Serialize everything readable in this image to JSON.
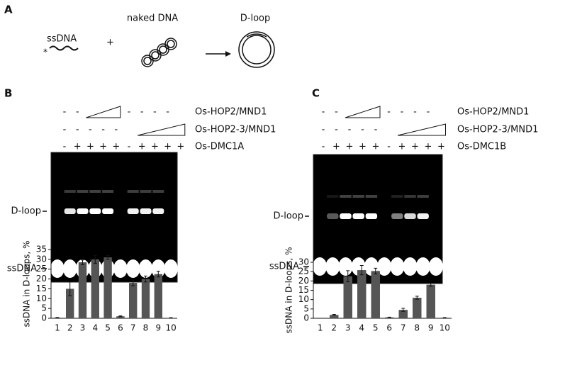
{
  "panel_a": {
    "label": "A",
    "ssdna": "ssDNA",
    "star": "*",
    "plus": "+",
    "naked_dna": "naked DNA",
    "d_loop": "D-loop"
  },
  "gels": [
    {
      "label": "B",
      "dloop_label": "D-loop",
      "ssdna_label": "ssDNA",
      "rows": [
        {
          "label": "Os-HOP2/MND1",
          "signs": [
            "-",
            "-",
            "-",
            "-",
            "-",
            "-"
          ]
        },
        {
          "label": "Os-HOP2-3/MND1",
          "signs": [
            "-",
            "-",
            "-",
            "-",
            "-"
          ]
        },
        {
          "label": "Os-DMC1A",
          "signs": [
            "-",
            "+",
            "+",
            "+",
            "+",
            "-",
            "+",
            "+",
            "+",
            "+"
          ]
        }
      ]
    },
    {
      "label": "C",
      "dloop_label": "D-loop",
      "ssdna_label": "ssDNA",
      "rows": [
        {
          "label": "Os-HOP2/MND1",
          "signs": [
            "-",
            "-",
            "-",
            "-",
            "-",
            "-"
          ]
        },
        {
          "label": "Os-HOP2-3/MND1",
          "signs": [
            "-",
            "-",
            "-",
            "-",
            "-"
          ]
        },
        {
          "label": "Os-DMC1B",
          "signs": [
            "-",
            "+",
            "+",
            "+",
            "+",
            "-",
            "+",
            "+",
            "+",
            "+"
          ]
        }
      ]
    }
  ],
  "chart_data": [
    {
      "type": "bar",
      "y_label": "ssDNA in D-loops, %",
      "categories": [
        "1",
        "2",
        "3",
        "4",
        "5",
        "6",
        "7",
        "8",
        "9",
        "10"
      ],
      "values": [
        0.3,
        15,
        28.5,
        30,
        31,
        1,
        18,
        20,
        22.5,
        0.2
      ],
      "errors": [
        0.1,
        3.5,
        1.2,
        2,
        1,
        0.2,
        1.5,
        1.5,
        1.5,
        0.1
      ],
      "color": "#555555",
      "ylim": [
        0,
        35
      ],
      "yticks": [
        0,
        5,
        10,
        15,
        20,
        25,
        30,
        35
      ]
    },
    {
      "type": "bar",
      "y_label": "ssDNA in D-loops, %",
      "categories": [
        "1",
        "2",
        "3",
        "4",
        "5",
        "6",
        "7",
        "8",
        "9",
        "10"
      ],
      "values": [
        0,
        1.8,
        22.5,
        25.8,
        25.3,
        0.5,
        4.5,
        11,
        18,
        0.3
      ],
      "errors": [
        0,
        0.3,
        3,
        2.5,
        1.5,
        0.1,
        0.8,
        0.8,
        0.8,
        0.1
      ],
      "color": "#555555",
      "ylim": [
        0,
        30
      ],
      "yticks": [
        0,
        5,
        10,
        15,
        20,
        25,
        30
      ]
    }
  ]
}
